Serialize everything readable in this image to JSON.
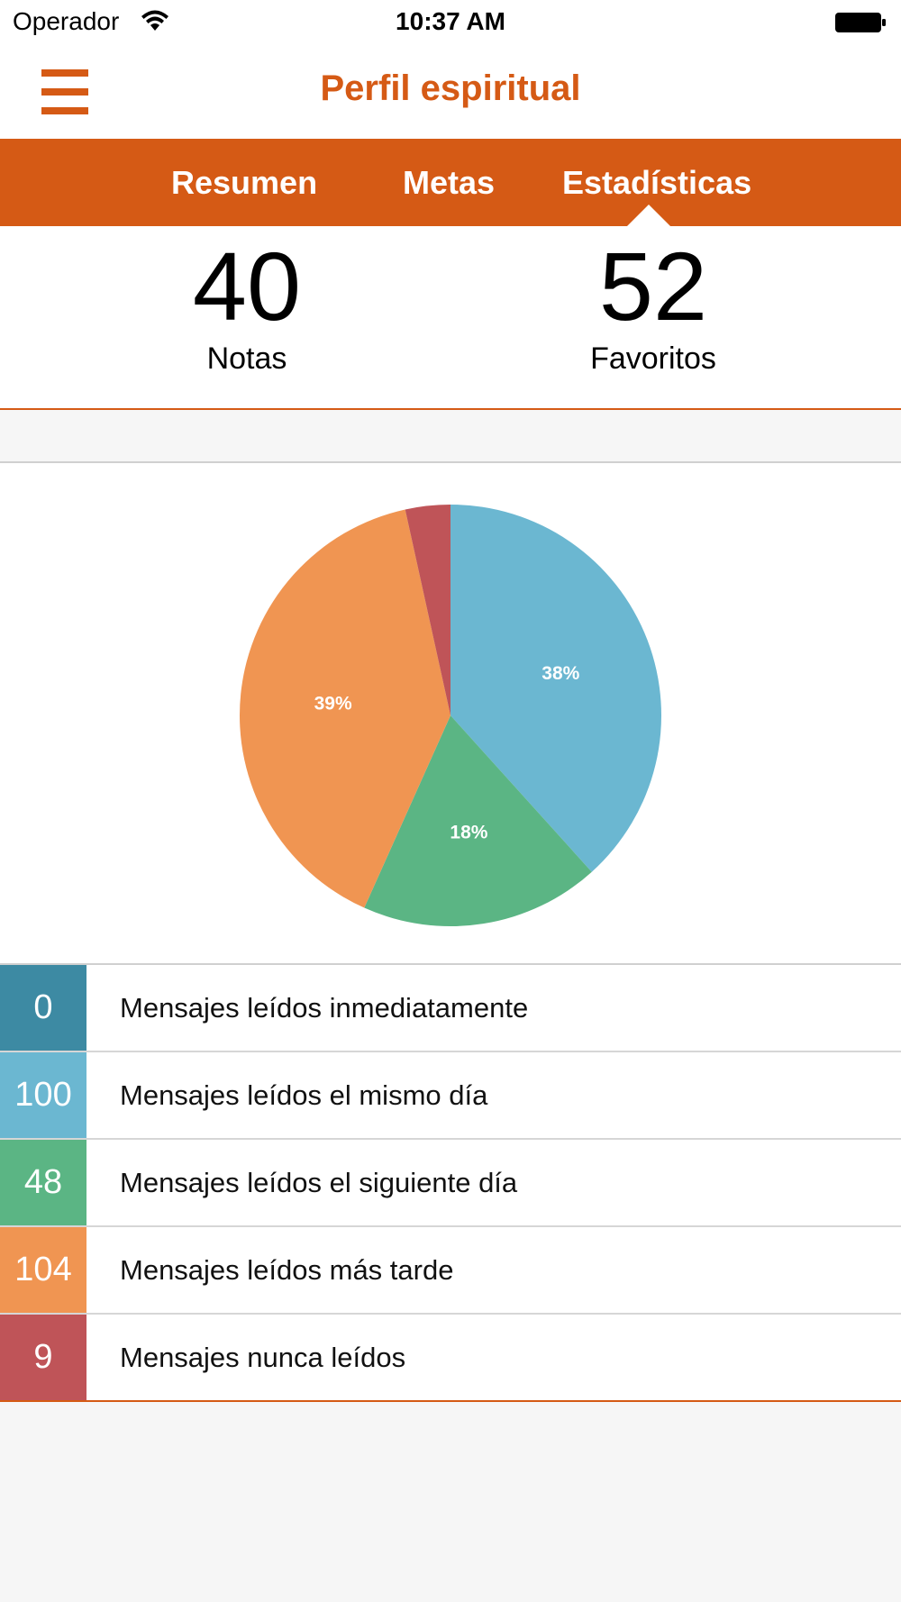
{
  "status_bar": {
    "carrier": "Operador",
    "time": "10:37 AM",
    "wifi_icon": "wifi-icon",
    "battery_icon": "battery-icon"
  },
  "nav": {
    "title": "Perfil espiritual",
    "menu_icon": "hamburger-menu-icon"
  },
  "tabs": [
    {
      "label": "Resumen"
    },
    {
      "label": "Metas"
    },
    {
      "label": "Estadísticas",
      "selected": true
    }
  ],
  "counters": [
    {
      "value": "40",
      "label": "Notas"
    },
    {
      "value": "52",
      "label": "Favoritos"
    }
  ],
  "chart_data": {
    "type": "pie",
    "slices": [
      {
        "label": "Mensajes leídos inmediatamente",
        "value": 0,
        "percent_label": "",
        "color": "#3d8aa3"
      },
      {
        "label": "Mensajes leídos el mismo día",
        "value": 100,
        "percent_label": "38%",
        "color": "#6bb7d1"
      },
      {
        "label": "Mensajes leídos el siguiente día",
        "value": 48,
        "percent_label": "18%",
        "color": "#5bb584"
      },
      {
        "label": "Mensajes leídos más tarde",
        "value": 104,
        "percent_label": "39%",
        "color": "#f09552"
      },
      {
        "label": "Mensajes nunca leídos",
        "value": 9,
        "percent_label": "",
        "color": "#bf5458"
      }
    ]
  },
  "legend": [
    {
      "count": "0",
      "label": "Mensajes leídos inmediatamente",
      "color": "#3d8aa3"
    },
    {
      "count": "100",
      "label": "Mensajes leídos el mismo día",
      "color": "#6bb7d1"
    },
    {
      "count": "48",
      "label": "Mensajes leídos el siguiente día",
      "color": "#5bb584"
    },
    {
      "count": "104",
      "label": "Mensajes leídos más tarde",
      "color": "#f09552"
    },
    {
      "count": "9",
      "label": "Mensajes nunca leídos",
      "color": "#bf5458"
    }
  ],
  "colors": {
    "accent": "#d55a15"
  }
}
